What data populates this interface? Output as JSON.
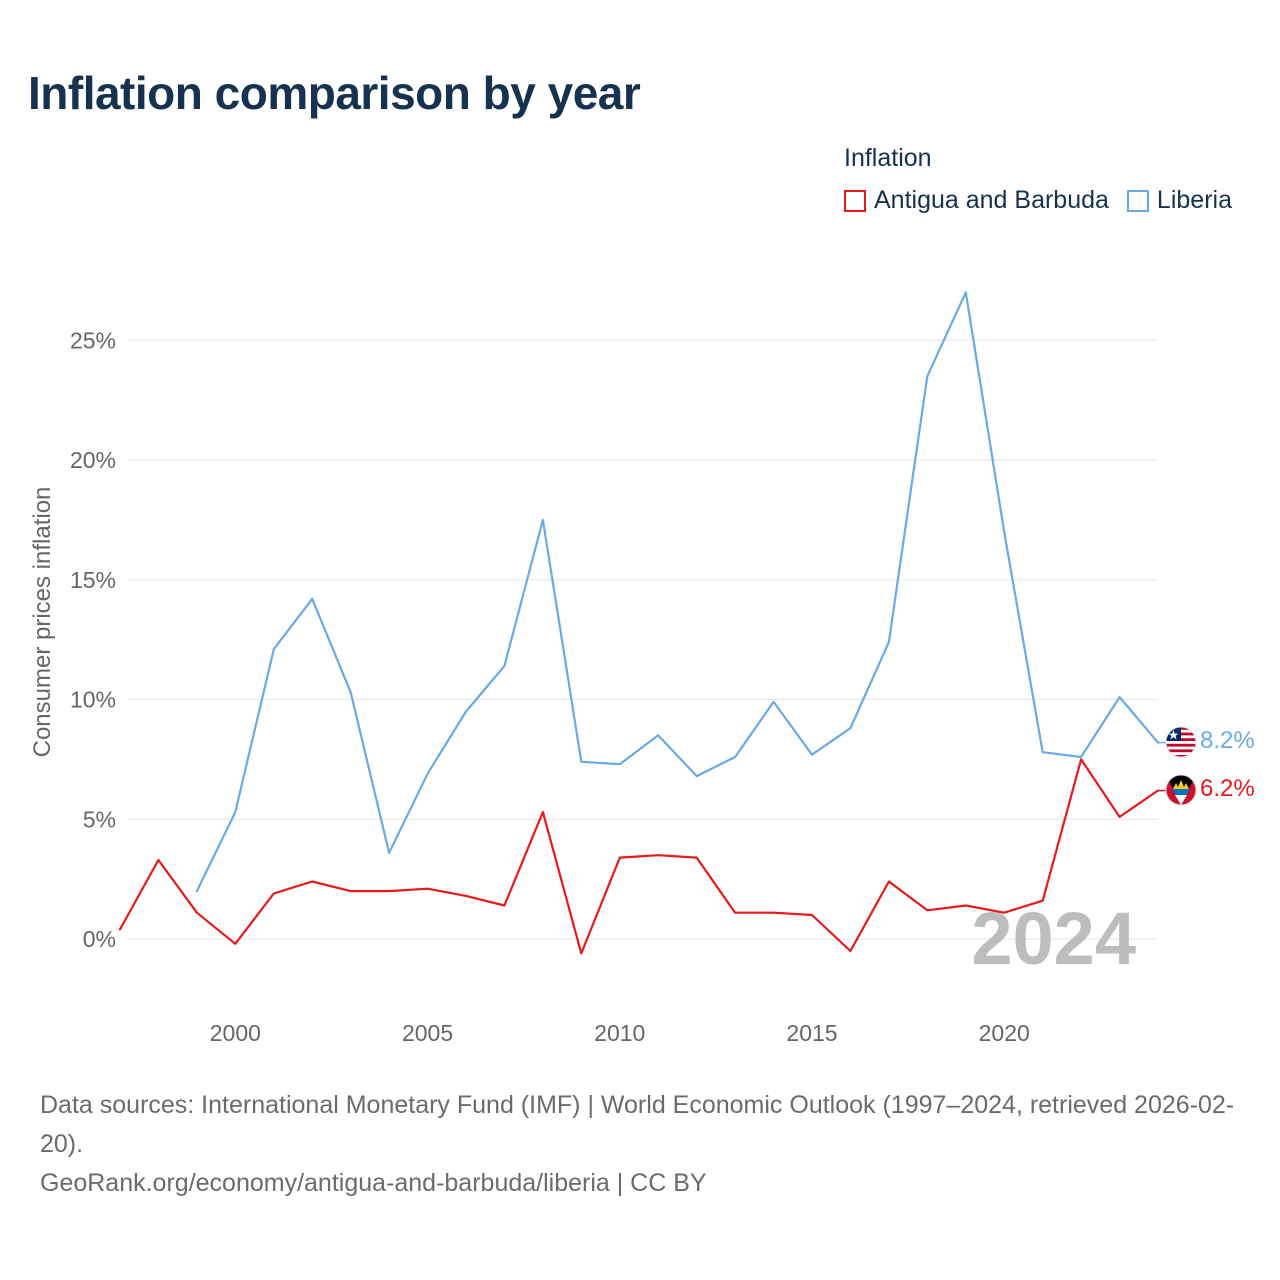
{
  "header": {
    "title": "Inflation comparison by year"
  },
  "legend": {
    "title": "Inflation",
    "items": [
      {
        "label": "Antigua and Barbuda",
        "color": "#e8191c"
      },
      {
        "label": "Liberia",
        "color": "#6aaae4"
      }
    ]
  },
  "source": {
    "line1": "Data sources: International Monetary Fund (IMF) | World Economic Outlook (1997–2024, retrieved 2026-02-20).",
    "line2": "GeoRank.org/economy/antigua-and-barbuda/liberia | CC BY"
  },
  "chart_data": {
    "type": "line",
    "title": "Inflation comparison by year",
    "xlabel": "",
    "ylabel": "Consumer prices inflation",
    "xlim": [
      1997,
      2024
    ],
    "ylim": [
      -2,
      27
    ],
    "grid": true,
    "legend_position": "top-right",
    "year_watermark": "2024",
    "x_ticks": [
      2000,
      2005,
      2010,
      2015,
      2020
    ],
    "x_tick_labels": [
      "2000",
      "2005",
      "2010",
      "2015",
      "2020"
    ],
    "y_ticks": [
      0,
      5,
      10,
      15,
      20,
      25
    ],
    "y_tick_labels": [
      "0%",
      "5%",
      "10%",
      "15%",
      "20%",
      "25%"
    ],
    "series": [
      {
        "name": "Antigua and Barbuda",
        "color": "#e8191c",
        "end_label": "6.2%",
        "points": [
          [
            1997,
            0.4
          ],
          [
            1998,
            3.3
          ],
          [
            1999,
            1.1
          ],
          [
            2000,
            -0.2
          ],
          [
            2001,
            1.9
          ],
          [
            2002,
            2.4
          ],
          [
            2003,
            2.0
          ],
          [
            2004,
            2.0
          ],
          [
            2005,
            2.1
          ],
          [
            2006,
            1.8
          ],
          [
            2007,
            1.4
          ],
          [
            2008,
            5.3
          ],
          [
            2009,
            -0.6
          ],
          [
            2010,
            3.4
          ],
          [
            2011,
            3.5
          ],
          [
            2012,
            3.4
          ],
          [
            2013,
            1.1
          ],
          [
            2014,
            1.1
          ],
          [
            2015,
            1.0
          ],
          [
            2016,
            -0.5
          ],
          [
            2017,
            2.4
          ],
          [
            2018,
            1.2
          ],
          [
            2019,
            1.4
          ],
          [
            2020,
            1.1
          ],
          [
            2021,
            1.6
          ],
          [
            2022,
            7.5
          ],
          [
            2023,
            5.1
          ],
          [
            2024,
            6.2
          ]
        ]
      },
      {
        "name": "Liberia",
        "color": "#6aaae4",
        "end_label": "8.2%",
        "points": [
          [
            1999,
            2.0
          ],
          [
            2000,
            5.3
          ],
          [
            2001,
            12.1
          ],
          [
            2002,
            14.2
          ],
          [
            2003,
            10.3
          ],
          [
            2004,
            3.6
          ],
          [
            2005,
            6.9
          ],
          [
            2006,
            9.5
          ],
          [
            2007,
            11.4
          ],
          [
            2008,
            17.5
          ],
          [
            2009,
            7.4
          ],
          [
            2010,
            7.3
          ],
          [
            2011,
            8.5
          ],
          [
            2012,
            6.8
          ],
          [
            2013,
            7.6
          ],
          [
            2014,
            9.9
          ],
          [
            2015,
            7.7
          ],
          [
            2016,
            8.8
          ],
          [
            2017,
            12.4
          ],
          [
            2018,
            23.5
          ],
          [
            2019,
            27.0
          ],
          [
            2020,
            17.0
          ],
          [
            2021,
            7.8
          ],
          [
            2022,
            7.6
          ],
          [
            2023,
            10.1
          ],
          [
            2024,
            8.2
          ]
        ]
      }
    ]
  }
}
